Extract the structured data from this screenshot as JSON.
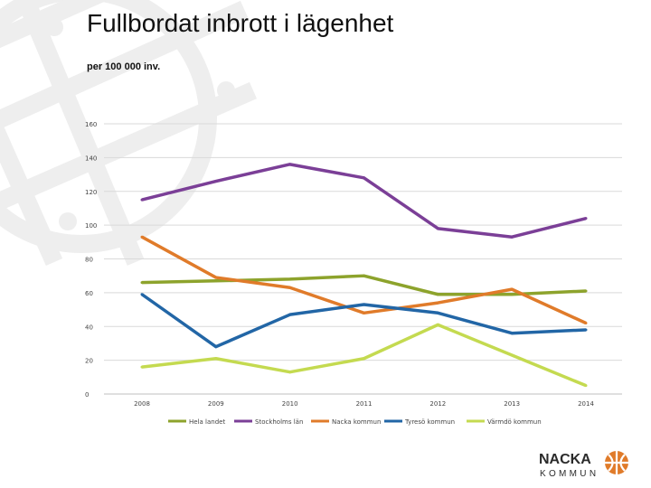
{
  "title": "Fullbordat inbrott i lägenhet",
  "subtitle": "per 100 000 inv.",
  "logo": {
    "line1": "NACKA",
    "line2": "KOMMUN"
  },
  "colors": {
    "accent": "#E07B2A",
    "grid": "#d9d9d9",
    "watermark": "#eeeeee"
  },
  "chart_data": {
    "type": "line",
    "categories": [
      "2008",
      "2009",
      "2010",
      "2011",
      "2012",
      "2013",
      "2014"
    ],
    "ylim": [
      0,
      160
    ],
    "yticks": [
      0,
      20,
      40,
      60,
      80,
      100,
      120,
      140,
      160
    ],
    "ytick_labels": [
      "0",
      "20",
      "40",
      "60",
      "80",
      "100",
      "120",
      "140",
      "160"
    ],
    "grid": true,
    "legend_position": "bottom",
    "xlabel": "",
    "ylabel": "",
    "series": [
      {
        "name": "Hela landet",
        "color": "#8DA32C",
        "values": [
          66,
          67,
          68,
          70,
          59,
          59,
          61
        ]
      },
      {
        "name": "Stockholms län",
        "color": "#7B3F97",
        "values": [
          115,
          126,
          136,
          128,
          98,
          93,
          104
        ]
      },
      {
        "name": "Nacka kommun",
        "color": "#E07B2A",
        "values": [
          93,
          69,
          63,
          48,
          54,
          62,
          42
        ]
      },
      {
        "name": "Tyresö kommun",
        "color": "#2266A6",
        "values": [
          59,
          28,
          47,
          53,
          48,
          36,
          38
        ]
      },
      {
        "name": "Värmdö kommun",
        "color": "#C4DA50",
        "values": [
          16,
          21,
          13,
          21,
          41,
          23,
          5
        ]
      }
    ]
  }
}
